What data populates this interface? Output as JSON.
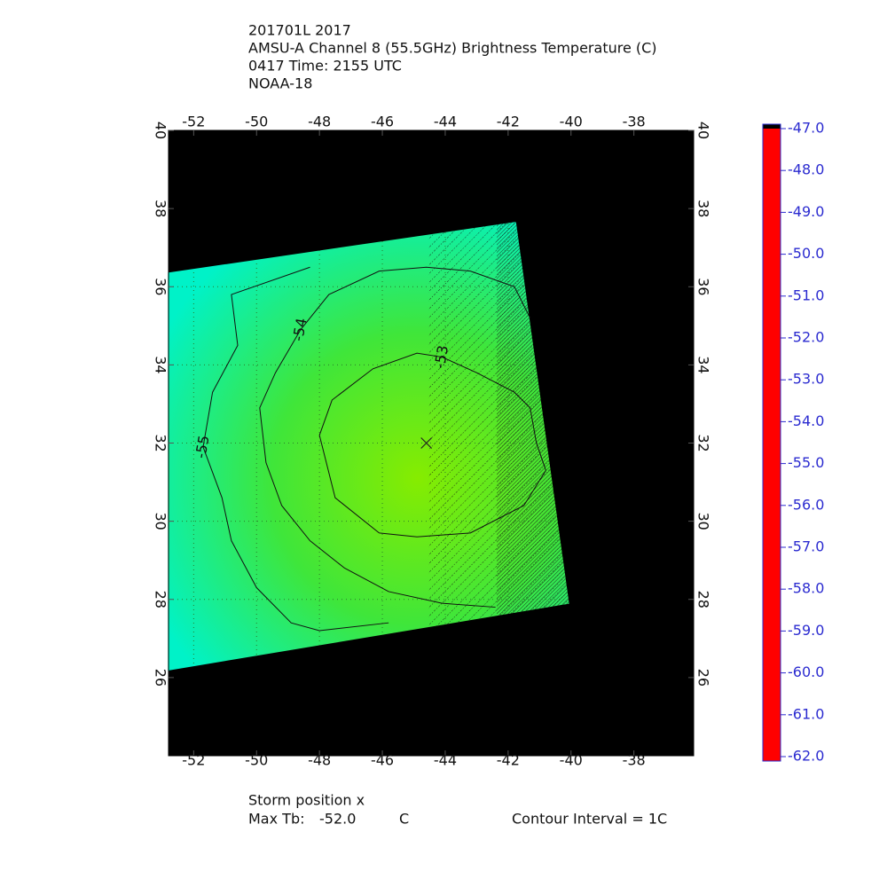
{
  "chart_data": {
    "type": "contour",
    "title_lines": [
      "201701L 2017",
      "AMSU-A Channel 8 (55.5GHz) Brightness Temperature (C)",
      "0417 Time: 2155 UTC",
      "NOAA-18"
    ],
    "xlim": [
      -52.8,
      -36.1
    ],
    "ylim": [
      24,
      40
    ],
    "xticks": [
      -52,
      -50,
      -48,
      -46,
      -44,
      -42,
      -40,
      -38
    ],
    "yticks": [
      26,
      28,
      30,
      32,
      34,
      36,
      38,
      40
    ],
    "grid": true,
    "background_color": "#000000",
    "field_colors": [
      "#86ec00",
      "#3fe63a",
      "#00f2c8"
    ],
    "swath": {
      "lon": [
        -52.82,
        -41.75,
        -40.06,
        -52.82
      ],
      "lat": [
        36.36,
        37.66,
        27.89,
        26.18
      ]
    },
    "contours": [
      {
        "level": -53,
        "lon": [
          -46.1,
          -47.5,
          -48.0,
          -47.6,
          -46.3,
          -44.9,
          -44.1,
          -43.0,
          -41.8,
          -41.3,
          -41.1,
          -40.8,
          -41.5,
          -43.2,
          -44.9,
          -46.1
        ],
        "lat": [
          29.7,
          30.6,
          32.2,
          33.1,
          33.9,
          34.3,
          34.2,
          33.8,
          33.3,
          32.9,
          32.0,
          31.3,
          30.4,
          29.7,
          29.6,
          29.7
        ]
      },
      {
        "level": -54,
        "lon": [
          -41.3,
          -41.8,
          -43.2,
          -44.6,
          -46.1,
          -47.7,
          -48.6,
          -49.4,
          -49.9,
          -49.7,
          -49.2,
          -48.3,
          -47.2,
          -45.8,
          -44.1,
          -42.4
        ],
        "lat": [
          35.2,
          36.0,
          36.4,
          36.5,
          36.4,
          35.8,
          34.9,
          33.8,
          32.9,
          31.5,
          30.4,
          29.5,
          28.8,
          28.2,
          27.9,
          27.8
        ]
      },
      {
        "level": -55,
        "lon": [
          -48.3,
          -50.8,
          -50.6,
          -51.4,
          -51.7,
          -51.1,
          -50.8,
          -50.0,
          -48.9,
          -48.0,
          -45.8
        ],
        "lat": [
          36.5,
          35.8,
          34.5,
          33.3,
          31.9,
          30.6,
          29.5,
          28.3,
          27.4,
          27.2,
          27.4
        ]
      }
    ],
    "storm_position": {
      "x": -44.6,
      "y": 32.0
    },
    "colorbar": {
      "clim": [
        -62,
        -47
      ],
      "colorscale": [
        {
          "value": -47,
          "color": "#ff0000"
        },
        {
          "value": -49,
          "color": "#ff7a00"
        },
        {
          "value": -51,
          "color": "#f5f000"
        },
        {
          "value": -52,
          "color": "#9ee800"
        },
        {
          "value": -53,
          "color": "#33e000"
        },
        {
          "value": -55,
          "color": "#00e6a0"
        },
        {
          "value": -56,
          "color": "#00e8f0"
        },
        {
          "value": -57,
          "color": "#0090ff"
        },
        {
          "value": -58,
          "color": "#0020ff"
        },
        {
          "value": -60,
          "color": "#5500c8"
        },
        {
          "value": -61,
          "color": "#200040"
        },
        {
          "value": -62,
          "color": "#000000"
        }
      ],
      "ticks": [
        {
          "value": -47,
          "label": "-47.0"
        },
        {
          "value": -48,
          "label": "-48.0"
        },
        {
          "value": -49,
          "label": "-49.0"
        },
        {
          "value": -50,
          "label": "-50.0"
        },
        {
          "value": -51,
          "label": "-51.0"
        },
        {
          "value": -52,
          "label": "-52.0"
        },
        {
          "value": -53,
          "label": "-53.0"
        },
        {
          "value": -54,
          "label": "-54.0"
        },
        {
          "value": -55,
          "label": "-55.0"
        },
        {
          "value": -56,
          "label": "-56.0"
        },
        {
          "value": -57,
          "label": "-57.0"
        },
        {
          "value": -58,
          "label": "-58.0"
        },
        {
          "value": -59,
          "label": "-59.0"
        },
        {
          "value": -60,
          "label": "-60.0"
        },
        {
          "value": -61,
          "label": "-61.0"
        },
        {
          "value": -62,
          "label": "-62.0"
        }
      ]
    },
    "footer": {
      "storm_label": "Storm position x",
      "max_tb_label": "Max Tb:",
      "max_tb": {
        "value": -52.0,
        "label": "-52.0"
      },
      "max_tb_unit": "C",
      "contour_interval": "Contour Interval = 1C"
    }
  }
}
